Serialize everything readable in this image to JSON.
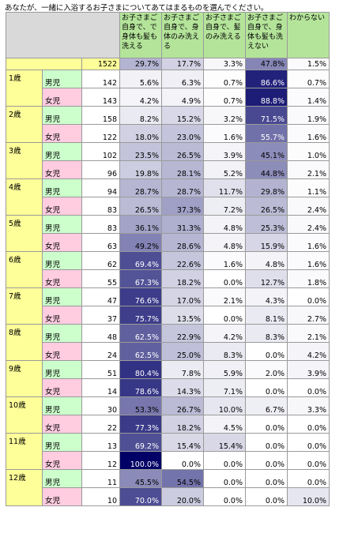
{
  "title": "あなたが、一緒に入浴するお子さまについてあてはまるものを選んでください。",
  "colors": {
    "header": "#b4e49a",
    "age": "#ffff99",
    "boy": "#ccffcc",
    "girl": "#ffcce0",
    "corner": "#d9d9d9",
    "heat_dark": "#000066",
    "heat_light": "#ffffff"
  },
  "chart_data": {
    "type": "table",
    "columns": [
      "お子さまご自身で、で身体も髪も洗える",
      "お子さまご自身で、身体のみ洗える",
      "お子さまご自身で、髪のみ洗える",
      "お子さまご自身で、身体も髪も洗えない",
      "わからない"
    ],
    "total": {
      "n": "1522",
      "values": [
        "29.7%",
        "17.7%",
        "3.3%",
        "47.8%",
        "1.5%"
      ]
    },
    "groups": [
      {
        "age": "1歳",
        "rows": [
          {
            "sex": "男児",
            "n": "142",
            "values": [
              "5.6%",
              "6.3%",
              "0.7%",
              "86.6%",
              "0.7%"
            ]
          },
          {
            "sex": "女児",
            "n": "143",
            "values": [
              "4.2%",
              "4.9%",
              "0.7%",
              "88.8%",
              "1.4%"
            ]
          }
        ]
      },
      {
        "age": "2歳",
        "rows": [
          {
            "sex": "男児",
            "n": "158",
            "values": [
              "8.2%",
              "15.2%",
              "3.2%",
              "71.5%",
              "1.9%"
            ]
          },
          {
            "sex": "女児",
            "n": "122",
            "values": [
              "18.0%",
              "23.0%",
              "1.6%",
              "55.7%",
              "1.6%"
            ]
          }
        ]
      },
      {
        "age": "3歳",
        "rows": [
          {
            "sex": "男児",
            "n": "102",
            "values": [
              "23.5%",
              "26.5%",
              "3.9%",
              "45.1%",
              "1.0%"
            ]
          },
          {
            "sex": "女児",
            "n": "96",
            "values": [
              "19.8%",
              "28.1%",
              "5.2%",
              "44.8%",
              "2.1%"
            ]
          }
        ]
      },
      {
        "age": "4歳",
        "rows": [
          {
            "sex": "男児",
            "n": "94",
            "values": [
              "28.7%",
              "28.7%",
              "11.7%",
              "29.8%",
              "1.1%"
            ]
          },
          {
            "sex": "女児",
            "n": "83",
            "values": [
              "26.5%",
              "37.3%",
              "7.2%",
              "26.5%",
              "2.4%"
            ]
          }
        ]
      },
      {
        "age": "5歳",
        "rows": [
          {
            "sex": "男児",
            "n": "83",
            "values": [
              "36.1%",
              "31.3%",
              "4.8%",
              "25.3%",
              "2.4%"
            ]
          },
          {
            "sex": "女児",
            "n": "63",
            "values": [
              "49.2%",
              "28.6%",
              "4.8%",
              "15.9%",
              "1.6%"
            ]
          }
        ]
      },
      {
        "age": "6歳",
        "rows": [
          {
            "sex": "男児",
            "n": "62",
            "values": [
              "69.4%",
              "22.6%",
              "1.6%",
              "4.8%",
              "1.6%"
            ]
          },
          {
            "sex": "女児",
            "n": "55",
            "values": [
              "67.3%",
              "18.2%",
              "0.0%",
              "12.7%",
              "1.8%"
            ]
          }
        ]
      },
      {
        "age": "7歳",
        "rows": [
          {
            "sex": "男児",
            "n": "47",
            "values": [
              "76.6%",
              "17.0%",
              "2.1%",
              "4.3%",
              "0.0%"
            ]
          },
          {
            "sex": "女児",
            "n": "37",
            "values": [
              "75.7%",
              "13.5%",
              "0.0%",
              "8.1%",
              "2.7%"
            ]
          }
        ]
      },
      {
        "age": "8歳",
        "rows": [
          {
            "sex": "男児",
            "n": "48",
            "values": [
              "62.5%",
              "22.9%",
              "4.2%",
              "8.3%",
              "2.1%"
            ]
          },
          {
            "sex": "女児",
            "n": "24",
            "values": [
              "62.5%",
              "25.0%",
              "8.3%",
              "0.0%",
              "4.2%"
            ]
          }
        ]
      },
      {
        "age": "9歳",
        "rows": [
          {
            "sex": "男児",
            "n": "51",
            "values": [
              "80.4%",
              "7.8%",
              "5.9%",
              "2.0%",
              "3.9%"
            ]
          },
          {
            "sex": "女児",
            "n": "14",
            "values": [
              "78.6%",
              "14.3%",
              "7.1%",
              "0.0%",
              "0.0%"
            ]
          }
        ]
      },
      {
        "age": "10歳",
        "rows": [
          {
            "sex": "男児",
            "n": "30",
            "values": [
              "53.3%",
              "26.7%",
              "10.0%",
              "6.7%",
              "3.3%"
            ]
          },
          {
            "sex": "女児",
            "n": "22",
            "values": [
              "77.3%",
              "18.2%",
              "4.5%",
              "0.0%",
              "0.0%"
            ]
          }
        ]
      },
      {
        "age": "11歳",
        "rows": [
          {
            "sex": "男児",
            "n": "13",
            "values": [
              "69.2%",
              "15.4%",
              "15.4%",
              "0.0%",
              "0.0%"
            ]
          },
          {
            "sex": "女児",
            "n": "12",
            "values": [
              "100.0%",
              "0.0%",
              "0.0%",
              "0.0%",
              "0.0%"
            ]
          }
        ]
      },
      {
        "age": "12歳",
        "rows": [
          {
            "sex": "男児",
            "n": "11",
            "values": [
              "45.5%",
              "54.5%",
              "0.0%",
              "0.0%",
              "0.0%"
            ]
          },
          {
            "sex": "女児",
            "n": "10",
            "values": [
              "70.0%",
              "20.0%",
              "0.0%",
              "0.0%",
              "10.0%"
            ]
          }
        ]
      }
    ]
  }
}
